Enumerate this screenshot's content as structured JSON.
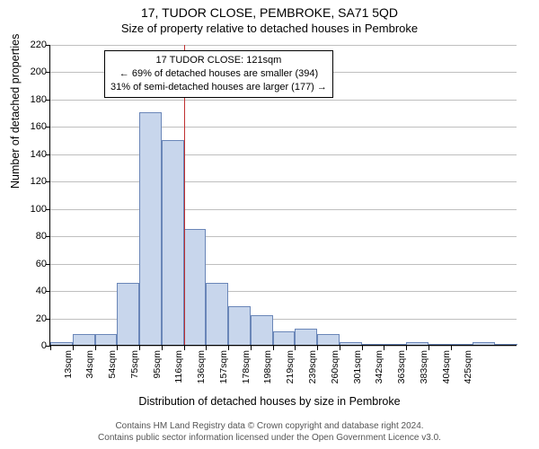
{
  "title_line1": "17, TUDOR CLOSE, PEMBROKE, SA71 5QD",
  "title_line2": "Size of property relative to detached houses in Pembroke",
  "y_axis_label": "Number of detached properties",
  "x_axis_label": "Distribution of detached houses by size in Pembroke",
  "footer_line1": "Contains HM Land Registry data © Crown copyright and database right 2024.",
  "footer_line2": "Contains public sector information licensed under the Open Government Licence v3.0.",
  "chart": {
    "type": "histogram",
    "ylim": [
      0,
      220
    ],
    "ytick_step": 20,
    "yticks": [
      0,
      20,
      40,
      60,
      80,
      100,
      120,
      140,
      160,
      180,
      200,
      220
    ],
    "xtick_labels": [
      "13sqm",
      "34sqm",
      "54sqm",
      "75sqm",
      "95sqm",
      "116sqm",
      "136sqm",
      "157sqm",
      "178sqm",
      "198sqm",
      "219sqm",
      "239sqm",
      "260sqm",
      "301sqm",
      "342sqm",
      "363sqm",
      "383sqm",
      "404sqm",
      "425sqm"
    ],
    "bar_values": [
      2,
      8,
      8,
      45,
      170,
      150,
      85,
      45,
      28,
      22,
      10,
      12,
      8,
      2,
      0,
      0,
      2,
      0,
      0,
      2,
      0
    ],
    "bar_color": "#c8d6ec",
    "bar_border": "#6a86b8",
    "grid_color": "#bfbfbf",
    "background_color": "#ffffff",
    "marker_bin_index": 5,
    "marker_color": "#c03030",
    "info_box": {
      "line1": "17 TUDOR CLOSE: 121sqm",
      "line2": "← 69% of detached houses are smaller (394)",
      "line3": "31% of semi-detached houses are larger (177) →"
    }
  }
}
